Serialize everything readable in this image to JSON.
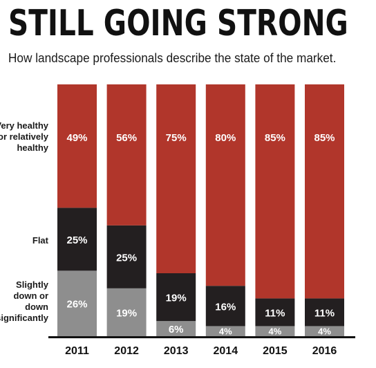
{
  "title": "STILL GOING STRONG",
  "subtitle": "How landscape professionals describe the state of the market.",
  "colors": {
    "healthy": "#b1362b",
    "flat": "#231f20",
    "down": "#8e8e8e",
    "axis": "#111111",
    "label_light": "#ffffff"
  },
  "chart_data": {
    "type": "bar",
    "stacked": true,
    "title": "STILL GOING STRONG",
    "subtitle": "How landscape professionals describe the state of the market.",
    "categories": [
      "2011",
      "2012",
      "2013",
      "2014",
      "2015",
      "2016"
    ],
    "series": [
      {
        "name": "Slightly down or down significantly",
        "values": [
          26,
          19,
          6,
          4,
          4,
          4
        ],
        "labels": [
          "26%",
          "19%",
          "6%",
          "4%",
          "4%",
          "4%"
        ]
      },
      {
        "name": "Flat",
        "values": [
          25,
          25,
          19,
          16,
          11,
          11
        ],
        "labels": [
          "25%",
          "25%",
          "19%",
          "16%",
          "11%",
          "11%"
        ]
      },
      {
        "name": "Very healthy or relatively healthy",
        "values": [
          49,
          56,
          75,
          80,
          85,
          85
        ],
        "labels": [
          "49%",
          "56%",
          "75%",
          "80%",
          "85%",
          "85%"
        ]
      }
    ],
    "ylim": [
      0,
      100
    ],
    "grid": false,
    "legend": "left"
  },
  "legend_labels": {
    "healthy": "Very healthy or relatively healthy",
    "flat": "Flat",
    "down": "Slightly down or down significantly"
  }
}
